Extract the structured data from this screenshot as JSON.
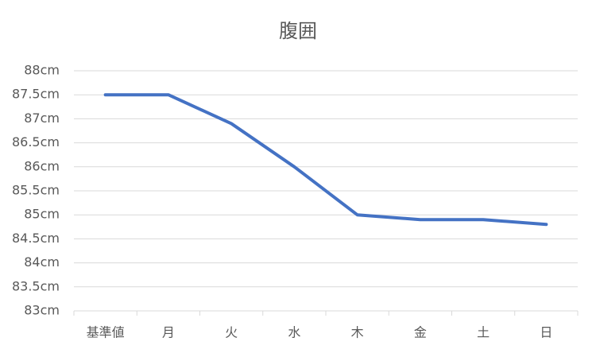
{
  "chart_data": {
    "type": "line",
    "title": "腹囲",
    "categories": [
      "基準値",
      "月",
      "火",
      "水",
      "木",
      "金",
      "土",
      "日"
    ],
    "values": [
      87.5,
      87.5,
      86.9,
      86.0,
      85.0,
      84.9,
      84.9,
      84.8
    ],
    "color": "#4472c4",
    "ylim": [
      83,
      88
    ],
    "yticks": [
      {
        "value": 83,
        "label": "83cm"
      },
      {
        "value": 83.5,
        "label": "83.5cm"
      },
      {
        "value": 84,
        "label": "84cm"
      },
      {
        "value": 84.5,
        "label": "84.5cm"
      },
      {
        "value": 85,
        "label": "85cm"
      },
      {
        "value": 85.5,
        "label": "85.5cm"
      },
      {
        "value": 86,
        "label": "86cm"
      },
      {
        "value": 86.5,
        "label": "86.5cm"
      },
      {
        "value": 87,
        "label": "87cm"
      },
      {
        "value": 87.5,
        "label": "87.5cm"
      },
      {
        "value": 88,
        "label": "88cm"
      }
    ],
    "grid": true
  }
}
